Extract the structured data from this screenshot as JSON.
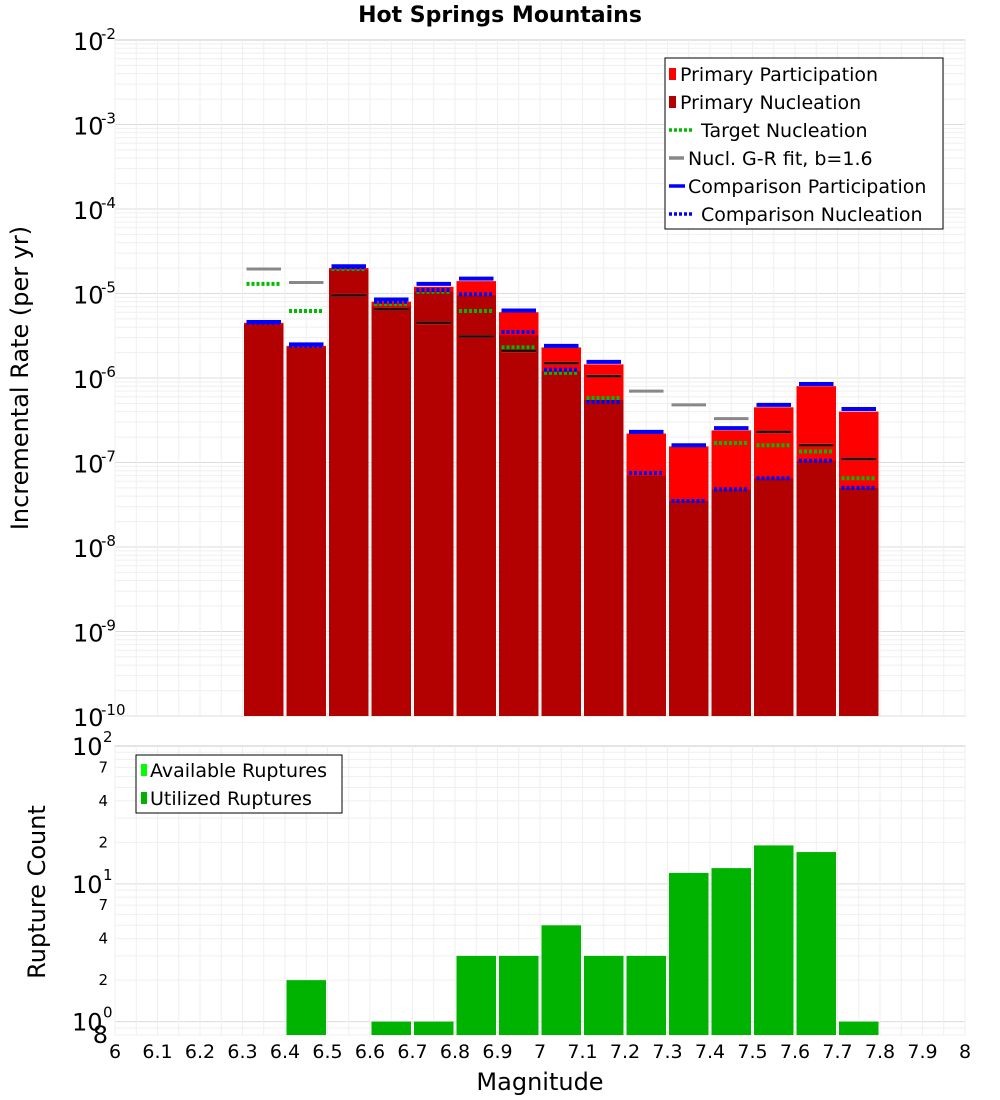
{
  "title": "Hot Springs Mountains",
  "xlabel": "Magnitude",
  "x_ticks": [
    "6",
    "6.1",
    "6.2",
    "6.3",
    "6.4",
    "6.5",
    "6.6",
    "6.7",
    "6.8",
    "6.9",
    "7",
    "7.1",
    "7.2",
    "7.3",
    "7.4",
    "7.5",
    "7.6",
    "7.7",
    "7.8",
    "7.9",
    "8"
  ],
  "top": {
    "ylabel": "Incremental Rate (per yr)",
    "y_ticks": [
      {
        "base": "10",
        "exp": "-2"
      },
      {
        "base": "10",
        "exp": "-3"
      },
      {
        "base": "10",
        "exp": "-4"
      },
      {
        "base": "10",
        "exp": "-5"
      },
      {
        "base": "10",
        "exp": "-6"
      },
      {
        "base": "10",
        "exp": "-7"
      },
      {
        "base": "10",
        "exp": "-8"
      },
      {
        "base": "10",
        "exp": "-9"
      },
      {
        "base": "10",
        "exp": "-10"
      }
    ],
    "legend": [
      {
        "label": "Primary Participation",
        "color": "#ff0000",
        "style": "block"
      },
      {
        "label": "Primary Nucleation",
        "color": "#b30000",
        "style": "block"
      },
      {
        "label": "Target Nucleation",
        "color": "#00bb00",
        "style": "dotted"
      },
      {
        "label": "Nucl. G-R fit, b=1.6",
        "color": "#888888",
        "style": "solid"
      },
      {
        "label": "Comparison Participation",
        "color": "#0000ff",
        "style": "solid"
      },
      {
        "label": "Comparison Nucleation",
        "color": "#0000ff",
        "style": "dotted"
      }
    ]
  },
  "bottom": {
    "ylabel": "Rupture Count",
    "y_ticks_major": [
      {
        "base": "10",
        "exp": "2"
      },
      {
        "base": "10",
        "exp": "1"
      },
      {
        "base": "10",
        "exp": "0"
      }
    ],
    "y_ticks_minor": [
      "7",
      "4",
      "2",
      "7",
      "4",
      "2",
      "8"
    ],
    "legend": [
      {
        "label": "Available Ruptures",
        "color": "#00ff00"
      },
      {
        "label": "Utilized Ruptures",
        "color": "#00b300"
      }
    ]
  },
  "chart_data": [
    {
      "type": "bar",
      "title": "Hot Springs Mountains",
      "xlabel": "Magnitude",
      "ylabel": "Incremental Rate (per yr)",
      "xlim": [
        6,
        8
      ],
      "ylim": [
        1e-10,
        0.01
      ],
      "log_y": true,
      "grid": true,
      "legend_position": "top-right",
      "bin_centers": [
        6.35,
        6.45,
        6.55,
        6.65,
        6.75,
        6.85,
        6.95,
        7.05,
        7.15,
        7.25,
        7.35,
        7.45,
        7.55,
        7.65,
        7.75
      ],
      "bin_width": 0.1,
      "series": [
        {
          "name": "Primary Participation",
          "values": [
            4.5e-06,
            2.4e-06,
            2e-05,
            8e-06,
            1.2e-05,
            1.4e-05,
            6e-06,
            2.3e-06,
            1.45e-06,
            2.2e-07,
            1.55e-07,
            2.4e-07,
            4.5e-07,
            8e-07,
            4e-07
          ]
        },
        {
          "name": "Primary Nucleation",
          "values": [
            4.3e-06,
            2.3e-06,
            1.9e-05,
            7e-06,
            1.05e-05,
            9.5e-06,
            3.2e-06,
            1.2e-06,
            5.5e-07,
            7e-08,
            3.5e-08,
            4.8e-08,
            6.5e-08,
            1.05e-07,
            5e-08
          ]
        },
        {
          "name": "Target Nucleation",
          "values": [
            1.3e-05,
            6.2e-06,
            1.95e-05,
            7.5e-06,
            1.05e-05,
            6.2e-06,
            2.3e-06,
            1.15e-06,
            5.8e-07,
            7.5e-08,
            3.5e-08,
            1.7e-07,
            1.6e-07,
            1.35e-07,
            6.5e-08
          ]
        },
        {
          "name": "Nucl. G-R fit, b=1.6",
          "values": [
            1.95e-05,
            1.35e-05,
            9.5e-06,
            6.5e-06,
            4.5e-06,
            3.1e-06,
            2.1e-06,
            1.5e-06,
            1.05e-06,
            7e-07,
            4.8e-07,
            3.3e-07,
            2.3e-07,
            1.6e-07,
            1.1e-07
          ]
        },
        {
          "name": "Comparison Participation",
          "values": [
            4.6e-06,
            2.5e-06,
            2.1e-05,
            8.5e-06,
            1.3e-05,
            1.5e-05,
            6.3e-06,
            2.4e-06,
            1.55e-06,
            2.3e-07,
            1.6e-07,
            2.55e-07,
            4.8e-07,
            8.5e-07,
            4.3e-07
          ]
        },
        {
          "name": "Comparison Nucleation",
          "values": [
            4.5e-06,
            2.4e-06,
            2.05e-05,
            8e-06,
            1.1e-05,
            9.8e-06,
            3.5e-06,
            1.25e-06,
            5.2e-07,
            7.5e-08,
            3.5e-08,
            4.8e-08,
            6.5e-08,
            1.05e-07,
            5e-08
          ]
        }
      ]
    },
    {
      "type": "bar",
      "xlabel": "Magnitude",
      "ylabel": "Rupture Count",
      "xlim": [
        6,
        8
      ],
      "ylim": [
        0.8,
        100
      ],
      "log_y": true,
      "grid": true,
      "legend_position": "top-left",
      "bin_centers": [
        6.35,
        6.45,
        6.55,
        6.65,
        6.75,
        6.85,
        6.95,
        7.05,
        7.15,
        7.25,
        7.35,
        7.45,
        7.55,
        7.65,
        7.75
      ],
      "bin_width": 0.1,
      "series": [
        {
          "name": "Available Ruptures",
          "values": [
            0,
            2,
            0,
            1,
            1,
            3,
            3,
            5,
            3,
            3,
            12,
            13,
            19,
            17,
            1
          ]
        },
        {
          "name": "Utilized Ruptures",
          "values": [
            0,
            2,
            0,
            1,
            1,
            3,
            3,
            5,
            3,
            3,
            12,
            13,
            19,
            17,
            1
          ]
        }
      ]
    }
  ]
}
